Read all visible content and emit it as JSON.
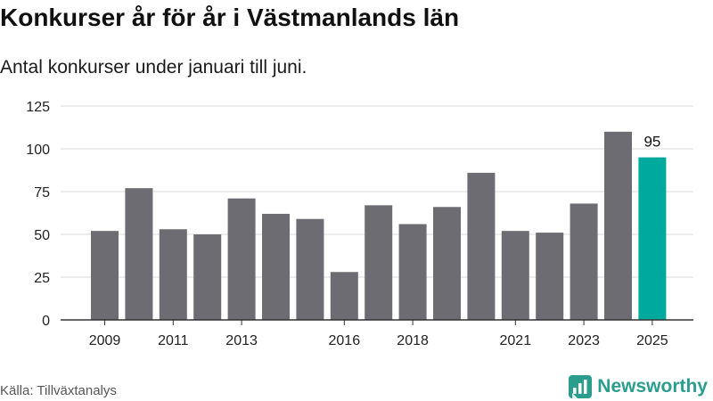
{
  "title": "Konkurser år för år i Västmanlands län",
  "subtitle": "Antal konkurser under januari till juni.",
  "source": "Källa: Tillväxtanalys",
  "brand": {
    "name": "Newsworthy",
    "icon": "newsworthy-logo-icon",
    "color": "#2a9d8f"
  },
  "chart_data": {
    "type": "bar",
    "x": [
      2009,
      2010,
      2011,
      2012,
      2013,
      2014,
      2015,
      2016,
      2017,
      2018,
      2019,
      2020,
      2021,
      2022,
      2023,
      2024,
      2025
    ],
    "values": [
      52,
      77,
      53,
      50,
      71,
      62,
      59,
      28,
      67,
      56,
      66,
      86,
      52,
      51,
      68,
      110,
      95
    ],
    "x_tick_labels": [
      "2009",
      "2011",
      "2013",
      "2016",
      "2018",
      "2021",
      "2023",
      "2025"
    ],
    "y_ticks": [
      0,
      25,
      50,
      75,
      100,
      125
    ],
    "ylim": [
      0,
      125
    ],
    "grid": true,
    "colors": {
      "default": "#6d6c72",
      "highlight": "#00a99d",
      "grid": "#d9d9d9",
      "axis": "#333333"
    },
    "highlight_x": 2025,
    "data_labels": [
      {
        "x": 2025,
        "text": "95"
      }
    ],
    "xlabel": "",
    "ylabel": ""
  }
}
